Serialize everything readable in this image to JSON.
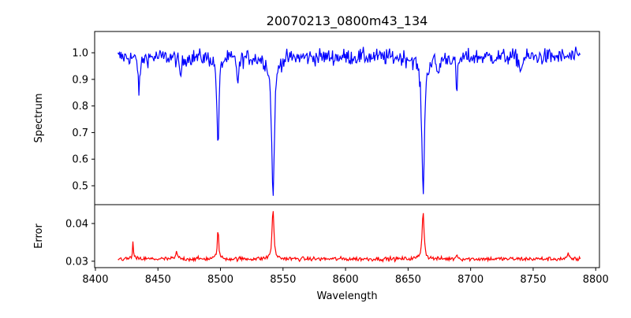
{
  "chart_data": {
    "type": "line",
    "title": "20070213_0800m43_134",
    "xlabel": "Wavelength",
    "xlim": [
      8399.4,
      8803
    ],
    "xticks": [
      8400,
      8450,
      8500,
      8550,
      8600,
      8650,
      8700,
      8750,
      8800
    ],
    "x_range": [
      8418,
      8788
    ],
    "panels": [
      {
        "name": "spectrum",
        "ylabel": "Spectrum",
        "ylim": [
          0.429,
          1.08
        ],
        "yticks": [
          "0.5",
          "0.6",
          "0.7",
          "0.8",
          "0.9",
          "1.0"
        ],
        "color": "#0000ff",
        "continuum": 0.985,
        "noise": 0.022,
        "features": [
          {
            "center": 8435,
            "depth": 0.13,
            "width": 0.9
          },
          {
            "center": 8468,
            "depth": 0.07,
            "width": 1.2
          },
          {
            "center": 8498,
            "depth": 0.36,
            "width": 0.9
          },
          {
            "center": 8514,
            "depth": 0.09,
            "width": 1.0
          },
          {
            "center": 8542,
            "depth": 0.53,
            "width": 1.3
          },
          {
            "center": 8662,
            "depth": 0.51,
            "width": 1.3
          },
          {
            "center": 8674,
            "depth": 0.07,
            "width": 1.0
          },
          {
            "center": 8689,
            "depth": 0.13,
            "width": 0.8
          },
          {
            "center": 8740,
            "depth": 0.06,
            "width": 1.0
          }
        ]
      },
      {
        "name": "error",
        "ylabel": "Error",
        "ylim": [
          0.0283,
          0.045
        ],
        "yticks": [
          "0.03",
          "0.04"
        ],
        "color": "#ff0000",
        "continuum": 0.0306,
        "noise": 0.0004,
        "features": [
          {
            "center": 8430,
            "depth": -0.0042,
            "width": 0.5
          },
          {
            "center": 8465,
            "depth": -0.0018,
            "width": 0.8
          },
          {
            "center": 8498,
            "depth": -0.0078,
            "width": 0.7
          },
          {
            "center": 8542,
            "depth": -0.013,
            "width": 0.9
          },
          {
            "center": 8662,
            "depth": -0.013,
            "width": 0.9
          },
          {
            "center": 8689,
            "depth": -0.0015,
            "width": 0.6
          },
          {
            "center": 8778,
            "depth": -0.0015,
            "width": 0.6
          }
        ]
      }
    ]
  }
}
